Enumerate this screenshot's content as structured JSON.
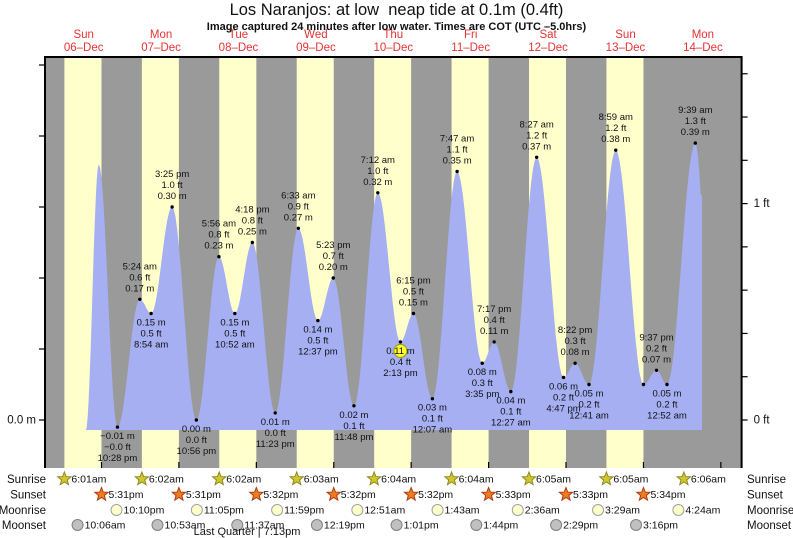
{
  "title": "Los Naranjos: at low  neap tide at 0.1m (0.4ft)",
  "subtitle": "Image captured 24 minutes after low water. Times are COT (UTC –5.0hrs)",
  "chart_data": {
    "type": "area",
    "title": "Los Naranjos: at low  neap tide at 0.1m (0.4ft)",
    "subtitle": "Image captured 24 minutes after low water. Times are COT (UTC –5.0hrs)",
    "days": [
      {
        "name": "Sun",
        "date": "06–Dec"
      },
      {
        "name": "Mon",
        "date": "07–Dec"
      },
      {
        "name": "Tue",
        "date": "08–Dec"
      },
      {
        "name": "Wed",
        "date": "09–Dec"
      },
      {
        "name": "Thu",
        "date": "10–Dec"
      },
      {
        "name": "Fri",
        "date": "11–Dec"
      },
      {
        "name": "Sat",
        "date": "12–Dec"
      },
      {
        "name": "Sun",
        "date": "13–Dec"
      },
      {
        "name": "Mon",
        "date": "14–Dec"
      }
    ],
    "y_axis_left": {
      "label": "0.0 m",
      "unit": "m",
      "tick_step_m": 0.1
    },
    "y_axis_right": {
      "labels": [
        {
          "text": "1 ft",
          "ft": 1
        },
        {
          "text": "0 ft",
          "ft": 0
        }
      ],
      "unit": "ft",
      "tick_step_ft": 0.2
    },
    "tide_events": [
      {
        "day": 0,
        "time": "12:40 pm",
        "m": -0.02,
        "type": "low",
        "pseudo": true,
        "labeled": false,
        "dot": false
      },
      {
        "day": 0,
        "time": "4:40 pm",
        "m": 0.36,
        "type": "high",
        "pseudo": false,
        "labeled": false,
        "dot": false
      },
      {
        "day": 0,
        "time": "10:28 pm",
        "m": -0.01,
        "type": "low",
        "labeled": true,
        "dot": true,
        "m_label": "−0.01 m",
        "ft_label": "−0.0 ft"
      },
      {
        "day": 1,
        "time": "5:24 am",
        "m": 0.17,
        "type": "high",
        "labeled": true,
        "dot": true,
        "m_label": "0.17 m",
        "ft_label": "0.6 ft"
      },
      {
        "day": 1,
        "time": "8:54 am",
        "m": 0.15,
        "type": "low",
        "labeled": true,
        "dot": true,
        "m_label": "0.15 m",
        "ft_label": "0.5 ft"
      },
      {
        "day": 1,
        "time": "3:25 pm",
        "m": 0.3,
        "type": "high",
        "labeled": true,
        "dot": true,
        "m_label": "0.30 m",
        "ft_label": "1.0 ft"
      },
      {
        "day": 1,
        "time": "10:56 pm",
        "m": 0.0,
        "type": "low",
        "labeled": true,
        "dot": true,
        "m_label": "0.00 m",
        "ft_label": "0.0 ft"
      },
      {
        "day": 2,
        "time": "5:56 am",
        "m": 0.23,
        "type": "high",
        "labeled": true,
        "dot": true,
        "m_label": "0.23 m",
        "ft_label": "0.8 ft"
      },
      {
        "day": 2,
        "time": "10:52 am",
        "m": 0.15,
        "type": "low",
        "labeled": true,
        "dot": true,
        "m_label": "0.15 m",
        "ft_label": "0.5 ft"
      },
      {
        "day": 2,
        "time": "4:18 pm",
        "m": 0.25,
        "type": "high",
        "labeled": true,
        "dot": true,
        "m_label": "0.25 m",
        "ft_label": "0.8 ft"
      },
      {
        "day": 2,
        "time": "11:23 pm",
        "m": 0.01,
        "type": "low",
        "labeled": true,
        "dot": true,
        "m_label": "0.01 m",
        "ft_label": "0.0 ft"
      },
      {
        "day": 3,
        "time": "6:33 am",
        "m": 0.27,
        "type": "high",
        "labeled": true,
        "dot": true,
        "m_label": "0.27 m",
        "ft_label": "0.9 ft"
      },
      {
        "day": 3,
        "time": "12:37 pm",
        "m": 0.14,
        "type": "low",
        "labeled": true,
        "dot": true,
        "m_label": "0.14 m",
        "ft_label": "0.5 ft"
      },
      {
        "day": 3,
        "time": "5:23 pm",
        "m": 0.2,
        "type": "high",
        "labeled": true,
        "dot": true,
        "m_label": "0.20 m",
        "ft_label": "0.7 ft"
      },
      {
        "day": 3,
        "time": "11:48 pm",
        "m": 0.02,
        "type": "low",
        "labeled": true,
        "dot": true,
        "m_label": "0.02 m",
        "ft_label": "0.1 ft"
      },
      {
        "day": 4,
        "time": "7:12 am",
        "m": 0.32,
        "type": "high",
        "labeled": true,
        "dot": true,
        "m_label": "0.32 m",
        "ft_label": "1.0 ft"
      },
      {
        "day": 4,
        "time": "2:13 pm",
        "m": 0.11,
        "type": "low",
        "labeled": true,
        "dot": true,
        "current": true,
        "m_label": "0.11 m",
        "ft_label": "0.4 ft"
      },
      {
        "day": 4,
        "time": "6:15 pm",
        "m": 0.15,
        "type": "high",
        "labeled": true,
        "dot": true,
        "m_label": "0.15 m",
        "ft_label": "0.5 ft"
      },
      {
        "day": 5,
        "time": "12:07 am",
        "m": 0.03,
        "type": "low",
        "labeled": true,
        "dot": true,
        "m_label": "0.03 m",
        "ft_label": "0.1 ft"
      },
      {
        "day": 5,
        "time": "7:47 am",
        "m": 0.35,
        "type": "high",
        "labeled": true,
        "dot": true,
        "m_label": "0.35 m",
        "ft_label": "1.1 ft"
      },
      {
        "day": 5,
        "time": "3:35 pm",
        "m": 0.08,
        "type": "low",
        "labeled": true,
        "dot": true,
        "m_label": "0.08 m",
        "ft_label": "0.3 ft"
      },
      {
        "day": 5,
        "time": "7:17 pm",
        "m": 0.11,
        "type": "high",
        "labeled": true,
        "dot": true,
        "m_label": "0.11 m",
        "ft_label": "0.4 ft"
      },
      {
        "day": 6,
        "time": "12:27 am",
        "m": 0.04,
        "type": "low",
        "labeled": true,
        "dot": true,
        "m_label": "0.04 m",
        "ft_label": "0.1 ft"
      },
      {
        "day": 6,
        "time": "8:27 am",
        "m": 0.37,
        "type": "high",
        "labeled": true,
        "dot": true,
        "m_label": "0.37 m",
        "ft_label": "1.2 ft"
      },
      {
        "day": 6,
        "time": "4:47 pm",
        "m": 0.06,
        "type": "low",
        "labeled": true,
        "dot": true,
        "m_label": "0.06 m",
        "ft_label": "0.2 ft"
      },
      {
        "day": 6,
        "time": "8:22 pm",
        "m": 0.08,
        "type": "high",
        "labeled": true,
        "dot": true,
        "m_label": "0.08 m",
        "ft_label": "0.3 ft"
      },
      {
        "day": 7,
        "time": "12:41 am",
        "m": 0.05,
        "type": "low",
        "labeled": true,
        "dot": true,
        "m_label": "0.05 m",
        "ft_label": "0.2 ft"
      },
      {
        "day": 7,
        "time": "8:59 am",
        "m": 0.38,
        "type": "high",
        "labeled": true,
        "dot": true,
        "m_label": "0.38 m",
        "ft_label": "1.2 ft"
      },
      {
        "day": 7,
        "time": "5:35 pm",
        "m": 0.05,
        "type": "low",
        "labeled": false,
        "dot": true
      },
      {
        "day": 7,
        "time": "9:37 pm",
        "m": 0.07,
        "type": "high",
        "labeled": true,
        "dot": true,
        "m_label": "0.07 m",
        "ft_label": "0.2 ft"
      },
      {
        "day": 8,
        "time": "12:52 am",
        "m": 0.05,
        "type": "low",
        "labeled": true,
        "dot": true,
        "m_label": "0.05 m",
        "ft_label": "0.2 ft"
      },
      {
        "day": 8,
        "time": "9:39 am",
        "m": 0.39,
        "type": "high",
        "labeled": true,
        "dot": true,
        "m_label": "0.39 m",
        "ft_label": "1.3 ft"
      },
      {
        "day": 8,
        "time": "3:30 pm",
        "m": 0.0,
        "type": "low",
        "pseudo": true,
        "labeled": false,
        "dot": false
      }
    ],
    "sun_moon": {
      "row_labels": [
        "Sunrise",
        "Sunset",
        "Moonrise",
        "Moonset"
      ],
      "sunrise": [
        {
          "day": 0,
          "time": "6:01am"
        },
        {
          "day": 1,
          "time": "6:02am"
        },
        {
          "day": 2,
          "time": "6:02am"
        },
        {
          "day": 3,
          "time": "6:03am"
        },
        {
          "day": 4,
          "time": "6:04am"
        },
        {
          "day": 5,
          "time": "6:04am"
        },
        {
          "day": 6,
          "time": "6:05am"
        },
        {
          "day": 7,
          "time": "6:05am"
        },
        {
          "day": 8,
          "time": "6:06am"
        }
      ],
      "sunset": [
        {
          "day": 0,
          "time": "5:31pm"
        },
        {
          "day": 1,
          "time": "5:31pm"
        },
        {
          "day": 2,
          "time": "5:32pm"
        },
        {
          "day": 3,
          "time": "5:32pm"
        },
        {
          "day": 4,
          "time": "5:32pm"
        },
        {
          "day": 5,
          "time": "5:33pm"
        },
        {
          "day": 6,
          "time": "5:33pm"
        },
        {
          "day": 7,
          "time": "5:34pm"
        }
      ],
      "moonrise": [
        {
          "day": 0,
          "time": "10:10pm"
        },
        {
          "day": 1,
          "time": "11:05pm"
        },
        {
          "day": 2,
          "time": "11:59pm"
        },
        {
          "day": 4,
          "time": "12:51am"
        },
        {
          "day": 5,
          "time": "1:43am"
        },
        {
          "day": 6,
          "time": "2:36am"
        },
        {
          "day": 7,
          "time": "3:29am"
        },
        {
          "day": 8,
          "time": "4:24am"
        }
      ],
      "moonset": [
        {
          "day": 0,
          "time": "10:06am"
        },
        {
          "day": 1,
          "time": "10:53am"
        },
        {
          "day": 2,
          "time": "11:37am"
        },
        {
          "day": 3,
          "time": "12:19pm"
        },
        {
          "day": 4,
          "time": "1:01pm"
        },
        {
          "day": 5,
          "time": "1:44pm"
        },
        {
          "day": 6,
          "time": "2:29pm"
        },
        {
          "day": 7,
          "time": "3:16pm"
        }
      ]
    },
    "moon_phase": "Last Quarter | 7:13pm",
    "colors": {
      "day_band": "#ffffcc",
      "night_band": "#9a9a9a",
      "tide_fill": "#a5aff2",
      "day_label_red": "#e53333",
      "sunrise_star_fill": "#d2c630",
      "sunrise_star_stroke": "#8a8a1e",
      "sunset_star_fill": "#ed7d21",
      "sunset_star_stroke": "#b03a10",
      "moonrise_fill": "#ffffcc",
      "moonrise_stroke": "#a0a0a0",
      "moonset_fill": "#c0c0c0",
      "moonset_stroke": "#808080",
      "current_marker_fill": "#ffff33",
      "current_marker_stroke": "#9a9a00",
      "text": "#111111"
    }
  }
}
